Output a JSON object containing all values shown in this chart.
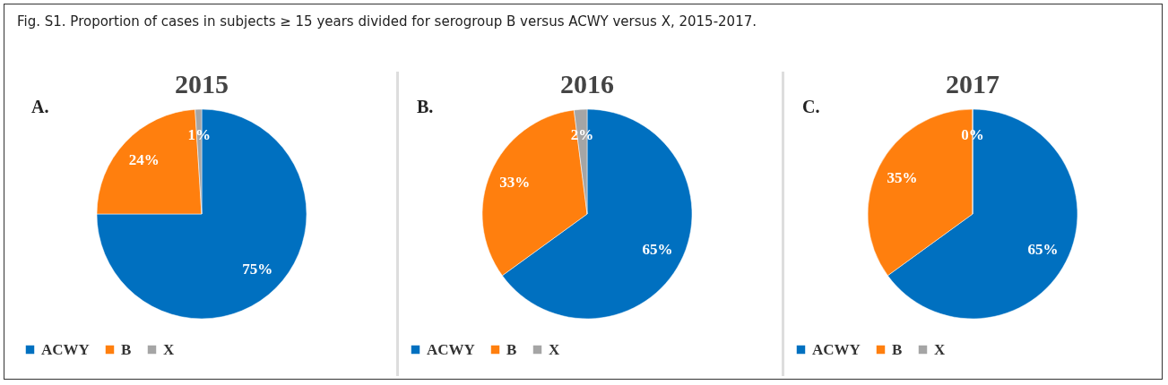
{
  "chart_data": [
    {
      "type": "pie",
      "title": "2015",
      "annotations": [
        "Fig. S1. Proportion of cases in subjects ≥ 15 years divided for serogroup B versus ACWY versus X, 2015-2017.",
        "A."
      ],
      "categories": [
        "ACWY",
        "B",
        "X"
      ],
      "values": [
        75,
        24,
        1
      ],
      "value_labels": [
        "75%",
        "24%",
        "1%"
      ],
      "colors": [
        "#0070c0",
        "#ff7f0e",
        "#a5a5a5"
      ],
      "legend": "bottom"
    },
    {
      "type": "pie",
      "title": "2016",
      "annotations": [
        "B."
      ],
      "categories": [
        "ACWY",
        "B",
        "X"
      ],
      "values": [
        65,
        33,
        2
      ],
      "value_labels": [
        "65%",
        "33%",
        "2%"
      ],
      "colors": [
        "#0070c0",
        "#ff7f0e",
        "#a5a5a5"
      ],
      "legend": "bottom"
    },
    {
      "type": "pie",
      "title": "2017",
      "annotations": [
        "C."
      ],
      "categories": [
        "ACWY",
        "B",
        "X"
      ],
      "values": [
        65,
        35,
        0
      ],
      "value_labels": [
        "65%",
        "35%",
        "0%"
      ],
      "colors": [
        "#0070c0",
        "#ff7f0e",
        "#a5a5a5"
      ],
      "legend": "bottom"
    }
  ]
}
